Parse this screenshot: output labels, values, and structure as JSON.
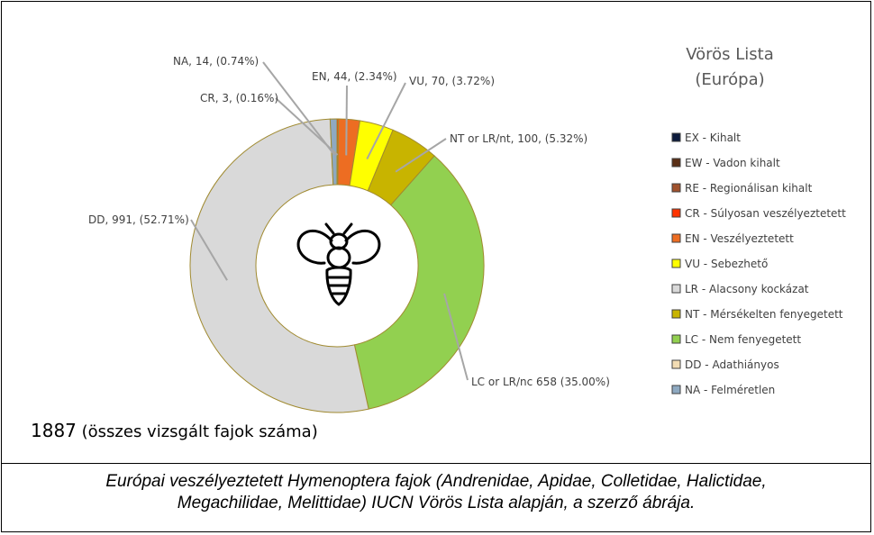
{
  "chart_data": {
    "type": "pie",
    "variant": "donut",
    "legend_title_line1": "Vörös Lista",
    "legend_title_line2": "(Európa)",
    "legend_placement": "right",
    "slices": [
      {
        "code": "CR",
        "value": 3,
        "percent": 0.16,
        "color": "#ff3300",
        "label": "CR, 3, (0.16%)"
      },
      {
        "code": "EN",
        "value": 44,
        "percent": 2.34,
        "color": "#ed6d22",
        "label": "EN, 44, (2.34%)"
      },
      {
        "code": "VU",
        "value": 70,
        "percent": 3.72,
        "color": "#ffff00",
        "label": "VU, 70, (3.72%)"
      },
      {
        "code": "NT",
        "value": 100,
        "percent": 5.32,
        "color": "#c8b400",
        "label": "NT or LR/nt, 100, (5.32%)"
      },
      {
        "code": "LC",
        "value": 658,
        "percent": 35.0,
        "color": "#92d050",
        "label": "LC or LR/nc 658 (35.00%)"
      },
      {
        "code": "DD",
        "value": 991,
        "percent": 52.71,
        "color": "#d9d9d9",
        "label": "DD, 991, (52.71%)"
      },
      {
        "code": "NA",
        "value": 14,
        "percent": 0.74,
        "color": "#8ea9c1",
        "label": "NA, 14, (0.74%)"
      }
    ],
    "legend": [
      {
        "text": "EX - Kihalt",
        "color": "#0d1b3d"
      },
      {
        "text": "EW - Vadon kihalt",
        "color": "#5a2f16"
      },
      {
        "text": "RE - Regionálisan kihalt",
        "color": "#a0522d"
      },
      {
        "text": "CR - Súlyosan veszélyeztetett",
        "color": "#ff3300"
      },
      {
        "text": "EN - Veszélyeztetett",
        "color": "#ed6d22"
      },
      {
        "text": "VU - Sebezhető",
        "color": "#ffff00"
      },
      {
        "text": "LR - Alacsony kockázat",
        "color": "#d9d9d9"
      },
      {
        "text": "NT - Mérsékelten fenyegetett",
        "color": "#c8b400"
      },
      {
        "text": "LC - Nem fenyegetett",
        "color": "#92d050"
      },
      {
        "text": "DD - Adathiányos",
        "color": "#f2dcb3"
      },
      {
        "text": "NA - Felméretlen",
        "color": "#8ea9c1"
      }
    ],
    "center_icon": "bee-icon"
  },
  "total": {
    "number": "1887",
    "text": " (összes vizsgált fajok száma)"
  },
  "caption": {
    "line1": "Európai veszélyeztetett Hymenoptera fajok (Andrenidae, Apidae, Colletidae, Halictidae,",
    "line2": "Megachilidae, Melittidae) IUCN Vörös Lista alapján, a szerző ábrája."
  }
}
